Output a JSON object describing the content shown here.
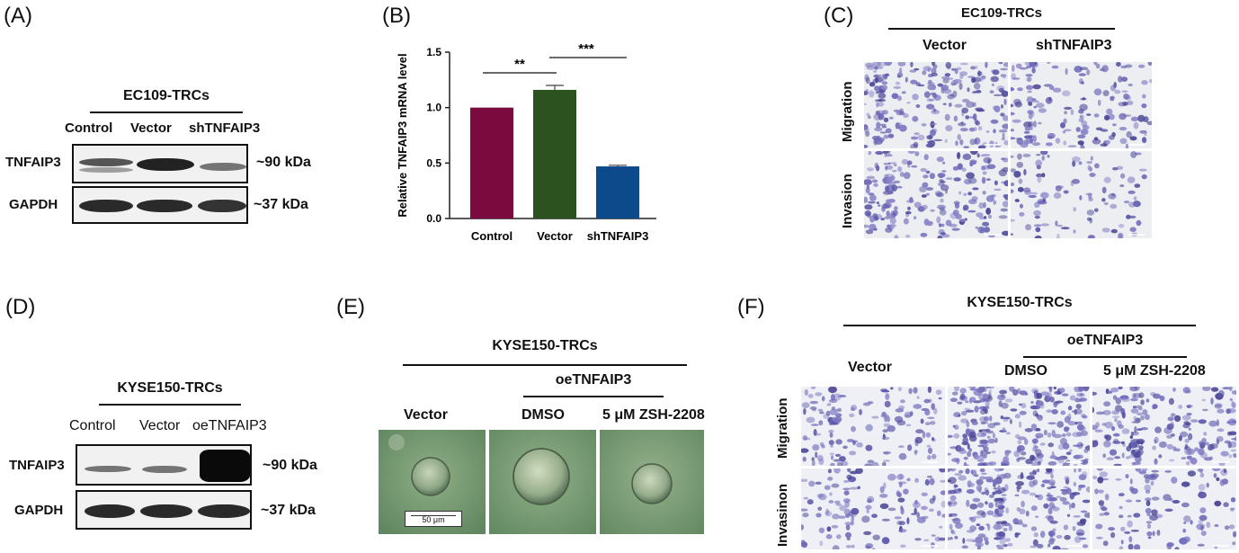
{
  "panels": {
    "A": {
      "label": "(A)",
      "header": "EC109-TRCs",
      "columns": [
        "Control",
        "Vector",
        "shTNFAIP3"
      ],
      "rows": [
        {
          "name": "TNFAIP3",
          "size": "~90 kDa"
        },
        {
          "name": "GAPDH",
          "size": "~37 kDa"
        }
      ]
    },
    "B": {
      "label": "(B)",
      "significance": [
        "**",
        "***"
      ]
    },
    "C": {
      "label": "(C)",
      "header": "EC109-TRCs",
      "columns": [
        "Vector",
        "shTNFAIP3"
      ],
      "rows": [
        "Migration",
        "Invasion"
      ]
    },
    "D": {
      "label": "(D)",
      "header": "KYSE150-TRCs",
      "columns": [
        "Control",
        "Vector",
        "oeTNFAIP3"
      ],
      "rows": [
        {
          "name": "TNFAIP3",
          "size": "~90 kDa"
        },
        {
          "name": "GAPDH",
          "size": "~37 kDa"
        }
      ]
    },
    "E": {
      "label": "(E)",
      "header": "KYSE150-TRCs",
      "subheader": "oeTNFAIP3",
      "columns": [
        "Vector",
        "DMSO",
        "5 μM ZSH-2208"
      ],
      "scalebar": "50 μm"
    },
    "F": {
      "label": "(F)",
      "header": "KYSE150-TRCs",
      "subheader": "oeTNFAIP3",
      "columns": [
        "Vector",
        "DMSO",
        "5 μM ZSH-2208"
      ],
      "rows": [
        "Migration",
        "Invasinon"
      ]
    }
  },
  "chart_data": {
    "type": "bar",
    "categories": [
      "Control",
      "Vector",
      "shTNFAIP3"
    ],
    "values": [
      1.0,
      1.16,
      0.47
    ],
    "errors": [
      0,
      0.04,
      0.01
    ],
    "colors": [
      "#7b0a3e",
      "#2c5220",
      "#0d4a8c"
    ],
    "ylabel": "Relative TNFAIP3 mRNA level",
    "xlabel": "",
    "ylim": [
      0,
      1.5
    ],
    "yticks": [
      "0.0",
      "0.5",
      "1.0",
      "1.5"
    ],
    "grid": false
  }
}
